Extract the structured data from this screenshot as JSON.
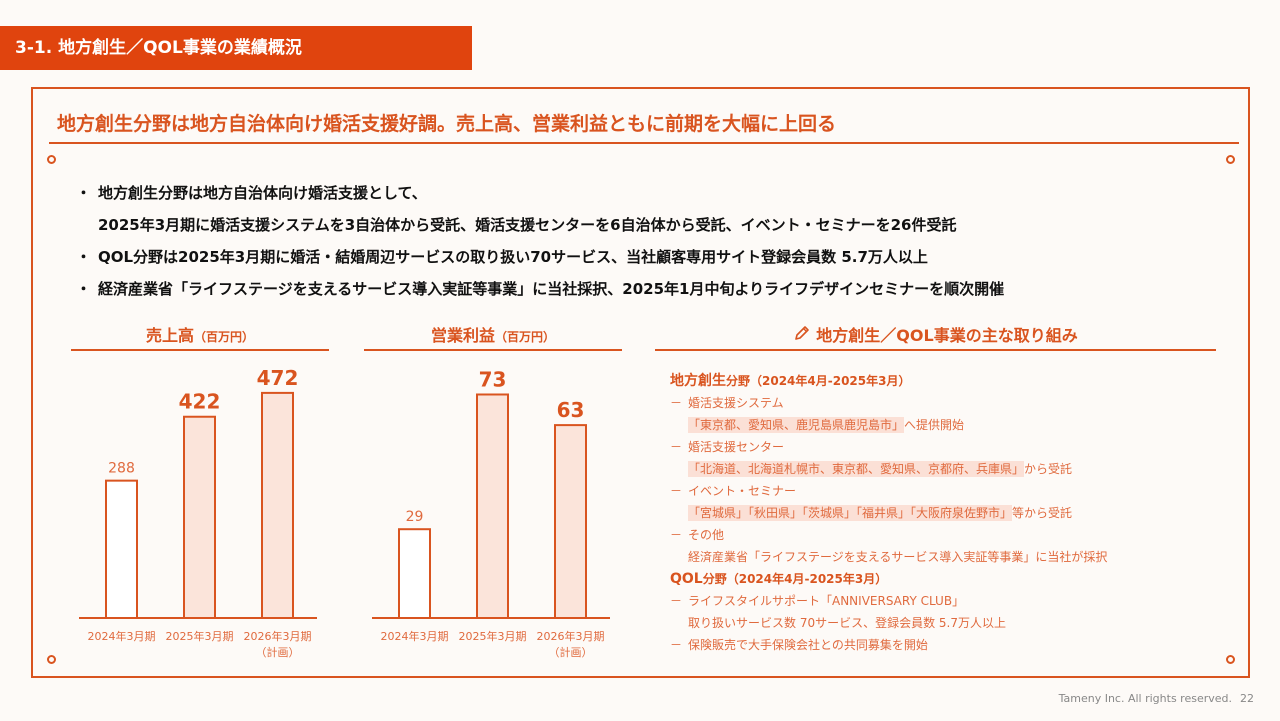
{
  "header": {
    "title": "3-1. 地方創生／QOL事業の業績概況"
  },
  "headline": "地方創生分野は地方自治体向け婚活支援好調。売上高、営業利益ともに前期を大幅に上回る",
  "bullets": [
    {
      "mark": "・",
      "lines": [
        "地方創生分野は地方自治体向け婚活支援として、",
        "2025年3月期に婚活支援システムを3自治体から受託、婚活支援センターを6自治体から受託、イベント・セミナーを26件受託"
      ]
    },
    {
      "mark": "・",
      "lines": [
        "QOL分野は2025年3月期に婚活・結婚周辺サービスの取り扱い70サービス、当社顧客専用サイト登録会員数 5.7万人以上"
      ]
    },
    {
      "mark": "・",
      "lines": [
        "経済産業省「ライフステージを支えるサービス導入実証等事業」に当社採択、2025年1月中旬よりライフデザインセミナーを順次開催"
      ]
    }
  ],
  "chart_data": [
    {
      "type": "bar",
      "title": "売上高",
      "unit": "（百万円）",
      "categories": [
        "2024年3月期",
        "2025年3月期",
        "2026年3月期"
      ],
      "category_sub": [
        "",
        "",
        "（計画）"
      ],
      "values": [
        288,
        422,
        472
      ],
      "ylim": [
        0,
        520
      ],
      "emphasis": [
        false,
        true,
        true
      ],
      "colors": {
        "border": "#d9541f",
        "fill_plain": "#ffffff",
        "fill_emph": "#fbe4da",
        "label_plain": "#e06a3e",
        "label_emph": "#d9541f"
      }
    },
    {
      "type": "bar",
      "title": "営業利益",
      "unit": "（百万円）",
      "categories": [
        "2024年3月期",
        "2025年3月期",
        "2026年3月期"
      ],
      "category_sub": [
        "",
        "",
        "（計画）"
      ],
      "values": [
        29,
        73,
        63
      ],
      "ylim": [
        0,
        81
      ],
      "emphasis": [
        false,
        true,
        true
      ],
      "colors": {
        "border": "#d9541f",
        "fill_plain": "#ffffff",
        "fill_emph": "#fbe4da",
        "label_plain": "#e06a3e",
        "label_emph": "#d9541f"
      }
    }
  ],
  "panel": {
    "icon": "pencil-icon",
    "title": "地方創生／QOL事業の主な取り組み",
    "sections": [
      {
        "title": "地方創生",
        "title_small": "分野（2024年4月-2025年3月）",
        "items": [
          {
            "label": "婚活支援システム",
            "sub_hl": "「東京都、愛知県、鹿児島県鹿児島市」",
            "sub_after": "へ提供開始"
          },
          {
            "label": "婚活支援センター",
            "sub_hl": "「北海道、北海道札幌市、東京都、愛知県、京都府、兵庫県」",
            "sub_after": "から受託"
          },
          {
            "label": "イベント・セミナー",
            "sub_hl": "「宮城県」「秋田県」「茨城県」「福井県」「大阪府泉佐野市」",
            "sub_after": "等から受託"
          },
          {
            "label": "その他",
            "sub_hl": "",
            "sub_after": "経済産業省「ライフステージを支えるサービス導入実証等事業」に当社が採択"
          }
        ]
      },
      {
        "title": "QOL",
        "title_small": "分野（2024年4月-2025年3月）",
        "items": [
          {
            "label": "ライフスタイルサポート「ANNIVERSARY CLUB」",
            "sub_hl": "",
            "sub_after": "取り扱いサービス数 70サービス、登録会員数 5.7万人以上"
          },
          {
            "label": "保険販売で大手保険会社との共同募集を開始",
            "sub_hl": "",
            "sub_after": ""
          }
        ]
      }
    ],
    "dash": "－"
  },
  "footer": {
    "copyright": "Tameny Inc. All rights reserved.",
    "page": "22"
  }
}
